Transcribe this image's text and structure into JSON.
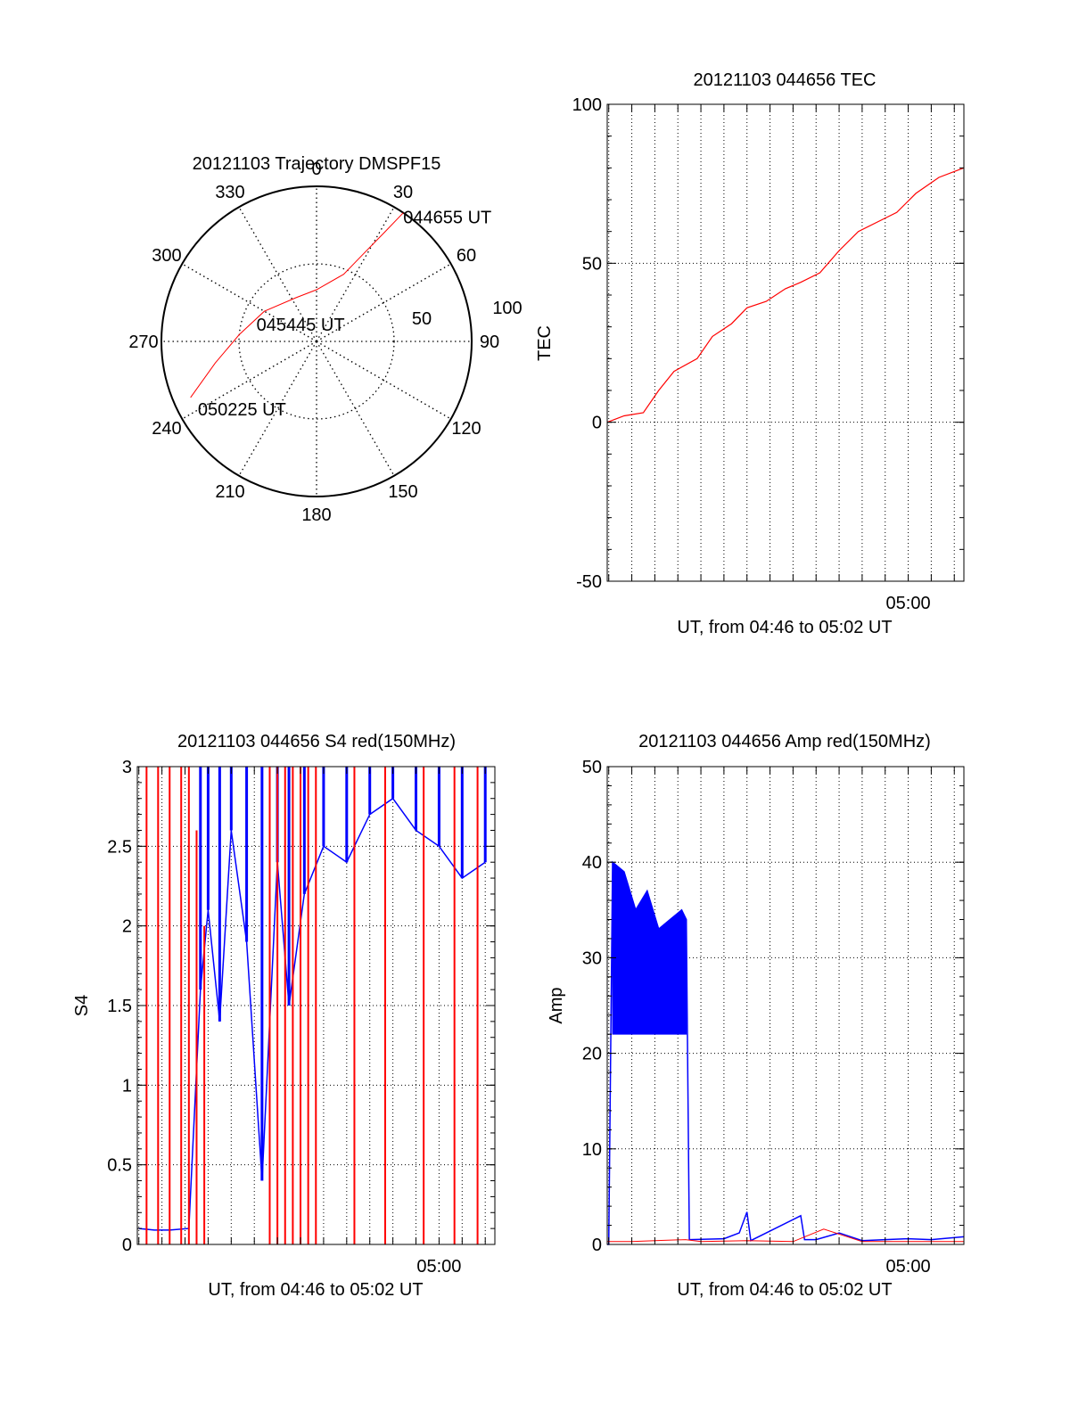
{
  "chart_data": [
    {
      "type": "polar",
      "title": "20121103 Trajectory DMSPF15",
      "azimuth_ticks": [
        0,
        30,
        60,
        90,
        120,
        150,
        180,
        210,
        240,
        270,
        300,
        330
      ],
      "radial_ticks": [
        50,
        100
      ],
      "grid": true,
      "series": [
        {
          "color": "#ff0000",
          "points": [
            {
              "az": 34,
              "el": 0
            },
            {
              "az": 32,
              "el": 15
            },
            {
              "az": 28,
              "el": 33
            },
            {
              "az": 22,
              "el": 48
            },
            {
              "az": 0,
              "el": 60
            },
            {
              "az": 335,
              "el": 62
            },
            {
              "az": 300,
              "el": 55
            },
            {
              "az": 275,
              "el": 45
            },
            {
              "az": 258,
              "el": 30
            },
            {
              "az": 246,
              "el": 10
            }
          ]
        }
      ],
      "annotations": [
        {
          "text": "044655 UT",
          "az": 34,
          "el": 0
        },
        {
          "text": "045445 UT",
          "az": 340,
          "el": 78
        },
        {
          "text": "050225 UT",
          "az": 242,
          "el": 12
        }
      ]
    },
    {
      "type": "line",
      "title": "20121103 044656 TEC",
      "xlabel": "UT, from 04:46 to 05:02 UT",
      "ylabel": "TEC",
      "xlim": [
        "04:46:56",
        "05:02:25"
      ],
      "ylim": [
        -50,
        100
      ],
      "yticks": [
        -50,
        0,
        50,
        100
      ],
      "xtick_labels": [
        {
          "x": "05:00",
          "label": "05:00"
        }
      ],
      "grid": true,
      "series": [
        {
          "color": "#ff0000",
          "x": [
            "04:46:56",
            "04:47:40",
            "04:48:30",
            "04:49:10",
            "04:49:50",
            "04:50:50",
            "04:51:30",
            "04:52:20",
            "04:53:00",
            "04:53:50",
            "04:54:40",
            "04:55:20",
            "04:56:10",
            "04:57:00",
            "04:57:50",
            "04:58:40",
            "04:59:30",
            "05:00:20",
            "05:01:20",
            "05:02:25"
          ],
          "y": [
            0,
            2,
            3,
            10,
            16,
            20,
            27,
            31,
            36,
            38,
            42,
            44,
            47,
            54,
            60,
            63,
            66,
            72,
            77,
            80
          ]
        }
      ]
    },
    {
      "type": "line",
      "title": "20121103 044656 S4 red(150MHz)",
      "xlabel": "UT, from 04:46 to 05:02 UT",
      "ylabel": "S4",
      "xlim": [
        "04:46:56",
        "05:02:25"
      ],
      "ylim": [
        0,
        3
      ],
      "yticks": [
        0,
        0.5,
        1,
        1.5,
        2,
        2.5,
        3
      ],
      "xtick_labels": [
        {
          "x": "05:00",
          "label": "05:00"
        }
      ],
      "grid": true,
      "series": [
        {
          "color": "#0000ff",
          "x": [
            "04:47:00",
            "04:47:40",
            "04:48:20",
            "04:49:10",
            "04:49:40",
            "04:50:00",
            "04:50:30",
            "04:51:00",
            "04:51:40",
            "04:52:20",
            "04:53:00",
            "04:53:30",
            "04:54:10",
            "04:55:00",
            "04:56:00",
            "04:57:00",
            "04:58:00",
            "04:59:00",
            "05:00:00",
            "05:01:00",
            "05:02:00"
          ],
          "y": [
            0.1,
            0.09,
            0.09,
            0.1,
            1.6,
            2.1,
            1.4,
            2.6,
            1.9,
            0.4,
            2.4,
            1.5,
            2.2,
            2.5,
            2.4,
            2.7,
            2.8,
            2.6,
            2.5,
            2.3,
            2.4
          ]
        },
        {
          "color": "#ff0000",
          "x": [
            "04:47:20",
            "04:47:50",
            "04:48:20",
            "04:48:50",
            "04:49:10",
            "04:49:30",
            "04:49:50",
            "04:52:40",
            "04:53:00",
            "04:53:20",
            "04:53:40",
            "04:54:00",
            "04:54:20",
            "04:54:40",
            "04:56:20",
            "04:57:40",
            "04:59:20",
            "05:00:40",
            "05:01:40"
          ],
          "y": [
            3,
            3,
            3,
            3,
            3,
            2.6,
            2.0,
            3,
            3,
            3,
            3,
            3,
            3,
            3,
            3,
            3,
            3,
            3,
            3
          ]
        }
      ]
    },
    {
      "type": "line",
      "title": "20121103 044656 Amp red(150MHz)",
      "xlabel": "UT, from 04:46 to 05:02 UT",
      "ylabel": "Amp",
      "xlim": [
        "04:46:56",
        "05:02:25"
      ],
      "ylim": [
        0,
        50
      ],
      "yticks": [
        0,
        10,
        20,
        30,
        40,
        50
      ],
      "xtick_labels": [
        {
          "x": "05:00",
          "label": "05:00"
        }
      ],
      "grid": true,
      "series": [
        {
          "color": "#0000ff",
          "x": [
            "04:46:56",
            "04:47:00",
            "04:47:10",
            "04:47:40",
            "04:48:10",
            "04:48:40",
            "04:49:10",
            "04:49:40",
            "04:50:10",
            "04:50:22",
            "04:50:30",
            "04:52:00",
            "04:52:40",
            "04:53:00",
            "04:53:10",
            "04:55:20",
            "04:55:30",
            "04:56:00",
            "04:57:00",
            "04:58:00",
            "04:59:00",
            "05:00:00",
            "05:01:00",
            "05:02:25"
          ],
          "y": [
            0,
            0,
            40,
            39,
            35,
            37,
            33,
            34,
            35,
            34,
            0.5,
            0.6,
            1.2,
            3.4,
            0.4,
            3.0,
            0.5,
            0.5,
            1.2,
            0.4,
            0.5,
            0.6,
            0.5,
            0.8
          ]
        },
        {
          "color": "#ff0000",
          "x": [
            "04:46:56",
            "04:48:00",
            "04:49:00",
            "04:50:20",
            "04:51:00",
            "04:53:00",
            "04:55:00",
            "04:56:20",
            "04:58:00",
            "05:00:00",
            "05:02:25"
          ],
          "y": [
            0.3,
            0.3,
            0.4,
            0.5,
            0.3,
            0.4,
            0.3,
            1.6,
            0.3,
            0.3,
            0.3
          ]
        }
      ]
    }
  ]
}
